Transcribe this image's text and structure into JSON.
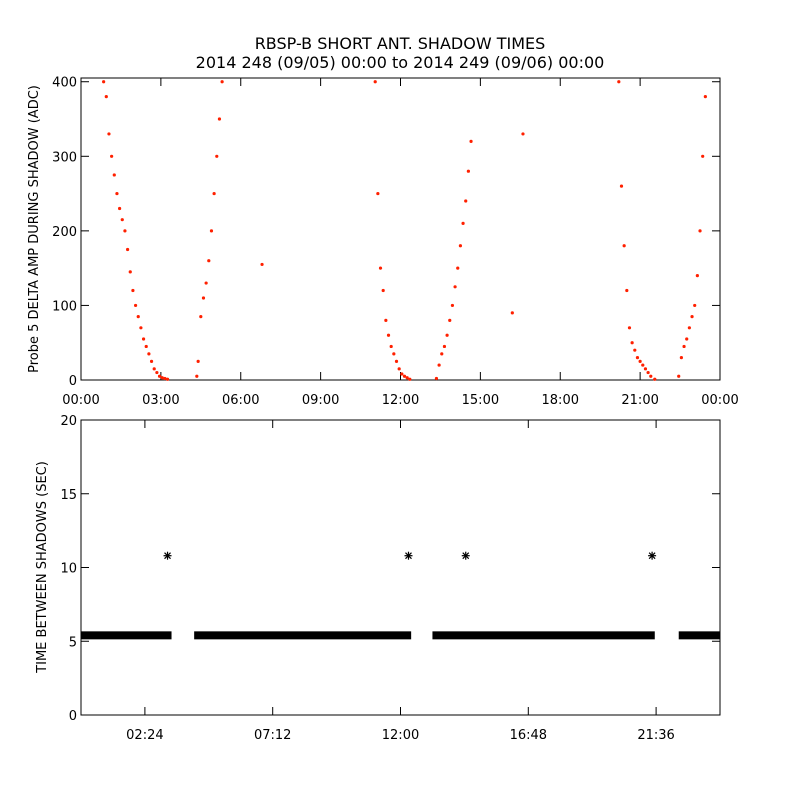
{
  "figure": {
    "title_line1": "RBSP-B SHORT ANT. SHADOW TIMES",
    "title_line2": "2014 248 (09/05) 00:00 to 2014 249 (09/06) 00:00"
  },
  "colors": {
    "data_top": "#ff2000",
    "data_bottom": "#000000",
    "axes": "#000000",
    "background": "#ffffff"
  },
  "chart_data": [
    {
      "type": "scatter",
      "title": "",
      "xlabel": "",
      "ylabel": "Probe 5 DELTA AMP DURING SHADOW (ADC)",
      "xlim": [
        0,
        24
      ],
      "ylim": [
        0,
        405
      ],
      "x_ticks": [
        0,
        3,
        6,
        9,
        12,
        15,
        18,
        21,
        24
      ],
      "x_tick_labels": [
        "00:00",
        "03:00",
        "06:00",
        "09:00",
        "12:00",
        "15:00",
        "18:00",
        "21:00",
        "00:00"
      ],
      "y_ticks": [
        0,
        100,
        200,
        300,
        400
      ],
      "y_tick_labels": [
        "0",
        "100",
        "200",
        "300",
        "400"
      ],
      "series": [
        {
          "color": "#ff2000",
          "x": [
            0.85,
            0.95,
            1.05,
            1.15,
            1.25,
            1.35,
            1.45,
            1.55,
            1.65,
            1.75,
            1.85,
            1.95,
            2.05,
            2.15,
            2.25,
            2.35,
            2.45,
            2.55,
            2.65,
            2.75,
            2.85,
            2.95,
            3.05,
            3.15,
            3.25,
            4.35,
            4.4,
            4.5,
            4.6,
            4.7,
            4.8,
            4.9,
            5.0,
            5.1,
            5.2,
            5.3,
            6.8,
            11.05,
            11.15,
            11.25,
            11.35,
            11.45,
            11.55,
            11.65,
            11.75,
            11.85,
            11.95,
            12.05,
            12.15,
            12.25,
            12.35,
            13.35,
            13.45,
            13.55,
            13.65,
            13.75,
            13.85,
            13.95,
            14.05,
            14.15,
            14.25,
            14.35,
            14.45,
            14.55,
            14.65,
            16.2,
            16.6,
            20.2,
            20.3,
            20.4,
            20.5,
            20.6,
            20.7,
            20.8,
            20.9,
            21.0,
            21.1,
            21.2,
            21.3,
            21.4,
            21.55,
            22.45,
            22.55,
            22.65,
            22.75,
            22.85,
            22.95,
            23.05,
            23.15,
            23.25,
            23.35,
            23.45
          ],
          "y": [
            400,
            380,
            330,
            300,
            275,
            250,
            230,
            215,
            200,
            175,
            145,
            120,
            100,
            85,
            70,
            55,
            45,
            35,
            25,
            15,
            10,
            5,
            3,
            2,
            1,
            5,
            25,
            85,
            110,
            130,
            160,
            200,
            250,
            300,
            350,
            400,
            155,
            400,
            250,
            150,
            120,
            80,
            60,
            45,
            35,
            25,
            15,
            8,
            5,
            3,
            1,
            2,
            20,
            35,
            45,
            60,
            80,
            100,
            125,
            150,
            180,
            210,
            240,
            280,
            320,
            90,
            330,
            400,
            260,
            180,
            120,
            70,
            50,
            40,
            30,
            25,
            20,
            15,
            10,
            5,
            1,
            5,
            30,
            45,
            55,
            70,
            85,
            100,
            140,
            200,
            300,
            380
          ]
        }
      ]
    },
    {
      "type": "scatter",
      "title": "",
      "xlabel": "",
      "ylabel": "TIME BETWEEN SHADOWS (SEC)",
      "xlim": [
        0,
        24
      ],
      "ylim": [
        0,
        20
      ],
      "x_ticks": [
        2.4,
        7.2,
        12.0,
        16.8,
        21.6
      ],
      "x_tick_labels": [
        "02:24",
        "07:12",
        "12:00",
        "16:48",
        "21:36"
      ],
      "y_ticks": [
        0,
        5,
        10,
        15,
        20
      ],
      "y_tick_labels": [
        "0",
        "5",
        "10",
        "15",
        "20"
      ],
      "bands": [
        {
          "x_start": 0.0,
          "x_end": 3.4,
          "y": 5.4
        },
        {
          "x_start": 4.25,
          "x_end": 12.4,
          "y": 5.4
        },
        {
          "x_start": 13.2,
          "x_end": 21.55,
          "y": 5.4
        },
        {
          "x_start": 22.45,
          "x_end": 24.0,
          "y": 5.4
        }
      ],
      "series": [
        {
          "color": "#000000",
          "x": [
            3.25,
            12.3,
            14.45,
            21.45
          ],
          "y": [
            10.8,
            10.8,
            10.8,
            10.8
          ]
        }
      ]
    }
  ]
}
